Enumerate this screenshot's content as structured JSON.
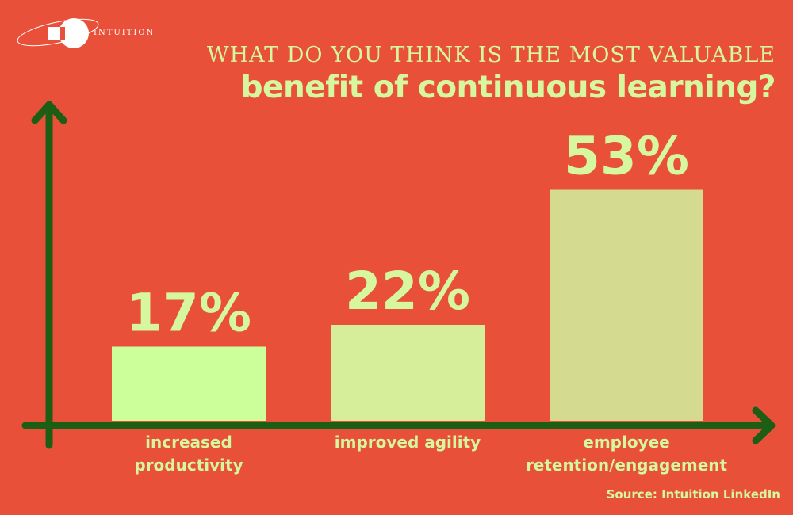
{
  "logo": {
    "text": "INTUITION"
  },
  "title_line1": "WHAT DO YOU THINK IS THE MOST VALUABLE",
  "title_line2": "benefit of continuous learning?",
  "source": "Source: Intuition LinkedIn",
  "colors": {
    "background": "#E8503A",
    "axis": "#1B5E14",
    "text": "#D6F79E",
    "bars": [
      "#CCFF99",
      "#D6EE9A",
      "#D5DA91"
    ]
  },
  "chart_data": {
    "type": "bar",
    "title": "WHAT DO YOU THINK IS THE MOST VALUABLE benefit of continuous learning?",
    "categories": [
      [
        "increased",
        "productivity"
      ],
      [
        "improved agility"
      ],
      [
        "employee",
        "retention/engagement"
      ]
    ],
    "values": [
      17,
      22,
      53
    ],
    "value_labels": [
      "17%",
      "22%",
      "53%"
    ],
    "unit": "%",
    "grid": false
  }
}
